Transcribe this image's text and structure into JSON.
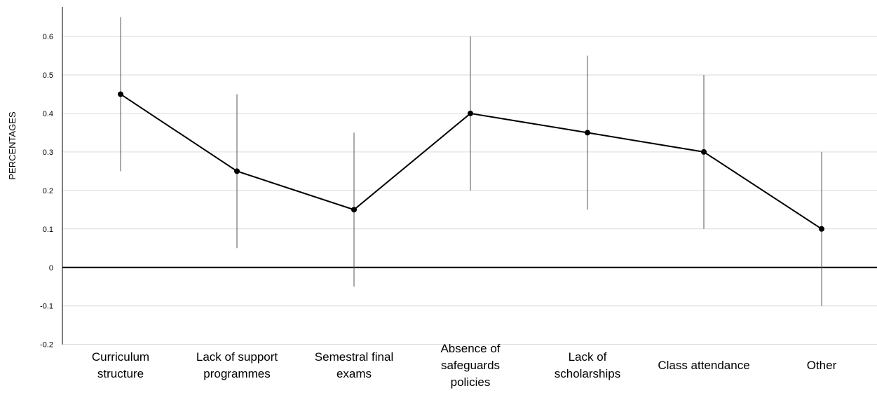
{
  "chart_data": {
    "type": "line",
    "title": "",
    "xlabel": "",
    "ylabel": "PERCENTAGES",
    "ylim": [
      -0.2,
      0.6
    ],
    "yticks": [
      "0.6",
      "0.5",
      "0.4",
      "0.3",
      "0.2",
      "0.1",
      "0",
      "-0.1",
      "-0.2"
    ],
    "grid": true,
    "legend": "none",
    "categories": [
      [
        "Curriculum",
        "structure"
      ],
      [
        "Lack of support",
        "programmes"
      ],
      [
        "Semestral final",
        "exams"
      ],
      [
        "Absence of",
        "safeguards",
        "policies"
      ],
      [
        "Lack of",
        "scholarships"
      ],
      [
        "Class attendance"
      ],
      [
        "Other"
      ]
    ],
    "series": [
      {
        "values": [
          0.45,
          0.25,
          0.15,
          0.4,
          0.35,
          0.3,
          0.1
        ],
        "error_low": [
          0.25,
          0.05,
          -0.05,
          0.2,
          0.15,
          0.1,
          -0.1
        ],
        "error_high": [
          0.65,
          0.45,
          0.35,
          0.6,
          0.55,
          0.5,
          0.3
        ]
      }
    ],
    "colors": {
      "line": "#000000",
      "grid": "#d9d9d9",
      "errorbar": "#555555"
    }
  }
}
